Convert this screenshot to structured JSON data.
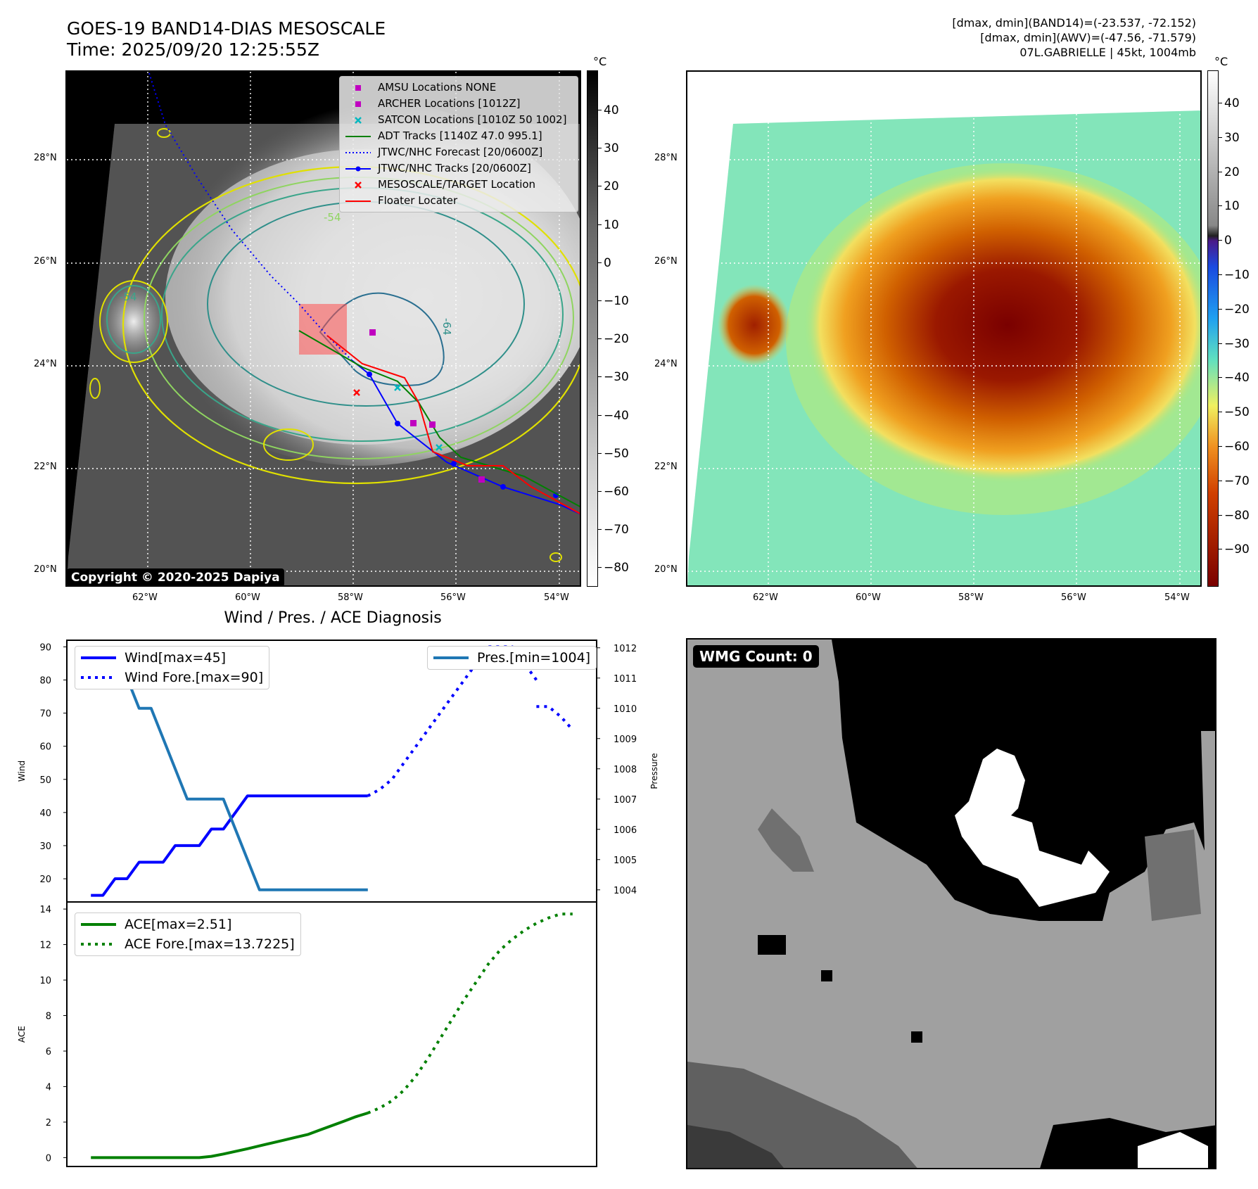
{
  "header": {
    "title_line1": "GOES-19 BAND14-DIAS MESOSCALE",
    "title_line2": "Time: 2025/09/20 12:25:55Z",
    "right_line1": "[dmax, dmin](BAND14)=(-23.537, -72.152)",
    "right_line2": "[dmax, dmin](AWV)=(-47.56, -71.579)",
    "right_line3": "07L.GABRIELLE | 45kt, 1004mb"
  },
  "map_axes": {
    "lat_labels": [
      "28°N",
      "26°N",
      "24°N",
      "22°N",
      "20°N"
    ],
    "lon_labels": [
      "62°W",
      "60°W",
      "58°W",
      "56°W",
      "54°W"
    ]
  },
  "ir_panel": {
    "colorbar_unit": "°C",
    "colorbar_ticks": [
      "40",
      "30",
      "20",
      "10",
      "0",
      "−10",
      "−20",
      "−30",
      "−40",
      "−50",
      "−60",
      "−70",
      "−80"
    ],
    "contour_labels": [
      "-54",
      "-54",
      "-64"
    ],
    "copyright": "Copyright © 2020-2025 Dapiya",
    "legend": [
      {
        "label": "AMSU Locations NONE",
        "color": "#c000c0",
        "symbol": "square"
      },
      {
        "label": "ARCHER Locations [1012Z]",
        "color": "#c000c0",
        "symbol": "square"
      },
      {
        "label": "SATCON Locations [1010Z 50 1002]",
        "color": "#00b8c0",
        "symbol": "x"
      },
      {
        "label": "ADT Tracks [1140Z 47.0 995.1]",
        "color": "#008000",
        "symbol": "line"
      },
      {
        "label": "JTWC/NHC Forecast [20/0600Z]",
        "color": "#0000ff",
        "symbol": "dotted"
      },
      {
        "label": "JTWC/NHC Tracks [20/0600Z]",
        "color": "#0000ff",
        "symbol": "line-dot"
      },
      {
        "label": "MESOSCALE/TARGET Location",
        "color": "#ff0000",
        "symbol": "x"
      },
      {
        "label": "Floater Locater",
        "color": "#ff0000",
        "symbol": "line"
      }
    ]
  },
  "awv_panel": {
    "colorbar_unit": "°C",
    "colorbar_ticks": [
      "40",
      "30",
      "20",
      "10",
      "0",
      "−10",
      "−20",
      "−30",
      "−40",
      "−50",
      "−60",
      "−70",
      "−80",
      "−90"
    ]
  },
  "wmg_panel": {
    "badge": "WMG Count: 0"
  },
  "chart_data": [
    {
      "type": "line",
      "title": "Wind / Pres. / ACE Diagnosis",
      "ylabel": "Wind",
      "y2label": "Pressure",
      "ylim": [
        13,
        92
      ],
      "y2lim": [
        1003.6,
        1012.25
      ],
      "yticks": [
        "90",
        "80",
        "70",
        "60",
        "50",
        "40",
        "30",
        "20"
      ],
      "y2ticks": [
        "1012",
        "1011",
        "1010",
        "1009",
        "1008",
        "1007",
        "1006",
        "1005",
        "1004"
      ],
      "series": [
        {
          "name": "Wind[max=45]",
          "color": "#0000ff",
          "style": "solid",
          "x": [
            0,
            1,
            2,
            3,
            4,
            5,
            6,
            7,
            8,
            9,
            10,
            11,
            12,
            13,
            14,
            15,
            16,
            17,
            18,
            19,
            20,
            21,
            22,
            23
          ],
          "values": [
            15,
            15,
            20,
            20,
            25,
            25,
            25,
            30,
            30,
            30,
            35,
            35,
            40,
            45,
            45,
            45,
            45,
            45,
            45,
            45,
            45,
            45,
            45,
            45
          ]
        },
        {
          "name": "Wind Fore.[max=90]",
          "color": "#0000ff",
          "style": "dotted",
          "x": [
            23,
            24,
            25,
            26,
            27,
            28,
            29,
            30,
            31,
            32,
            33,
            34,
            35,
            36,
            37
          ],
          "values": [
            45,
            47,
            50,
            55,
            60,
            65,
            70,
            75,
            80,
            85,
            90,
            90,
            90,
            85,
            80
          ]
        },
        {
          "name": "Pres.[min=1004]",
          "color": "#1f77b4",
          "style": "solid",
          "axis": "right",
          "x": [
            0,
            1,
            2,
            3,
            4,
            5,
            6,
            7,
            8,
            9,
            10,
            11,
            12,
            13,
            14,
            15,
            16,
            17,
            18,
            19,
            20,
            21,
            22,
            23
          ],
          "values": [
            1012,
            1012,
            1011,
            1011,
            1010,
            1010,
            1009,
            1008,
            1007,
            1007,
            1007,
            1007,
            1006,
            1005,
            1004,
            1004,
            1004,
            1004,
            1004,
            1004,
            1004,
            1004,
            1004,
            1004
          ]
        },
        {
          "name": "",
          "color": "#0000ff",
          "style": "dotted",
          "x": [
            37,
            38,
            39,
            40
          ],
          "values": [
            72,
            72,
            69,
            65
          ]
        }
      ]
    },
    {
      "type": "line",
      "ylabel": "ACE",
      "ylim": [
        -0.5,
        14.4
      ],
      "yticks": [
        "14",
        "12",
        "10",
        "8",
        "6",
        "4",
        "2",
        "0"
      ],
      "series": [
        {
          "name": "ACE[max=2.51]",
          "color": "#008000",
          "style": "solid",
          "x": [
            0,
            3,
            6,
            9,
            10,
            11,
            12,
            13,
            14,
            15,
            16,
            17,
            18,
            19,
            20,
            21,
            22,
            23
          ],
          "values": [
            0,
            0,
            0,
            0,
            0.07,
            0.2,
            0.35,
            0.5,
            0.66,
            0.82,
            0.98,
            1.14,
            1.3,
            1.55,
            1.8,
            2.05,
            2.3,
            2.51
          ]
        },
        {
          "name": "ACE Fore.[max=13.7225]",
          "color": "#008000",
          "style": "dotted",
          "x": [
            23,
            24,
            25,
            26,
            27,
            28,
            29,
            30,
            31,
            32,
            33,
            34,
            35,
            36,
            37,
            38,
            39,
            40
          ],
          "values": [
            2.51,
            2.8,
            3.2,
            3.8,
            4.6,
            5.6,
            6.7,
            7.8,
            8.9,
            9.9,
            10.9,
            11.7,
            12.3,
            12.8,
            13.2,
            13.5,
            13.7225,
            13.7225
          ]
        }
      ]
    }
  ]
}
